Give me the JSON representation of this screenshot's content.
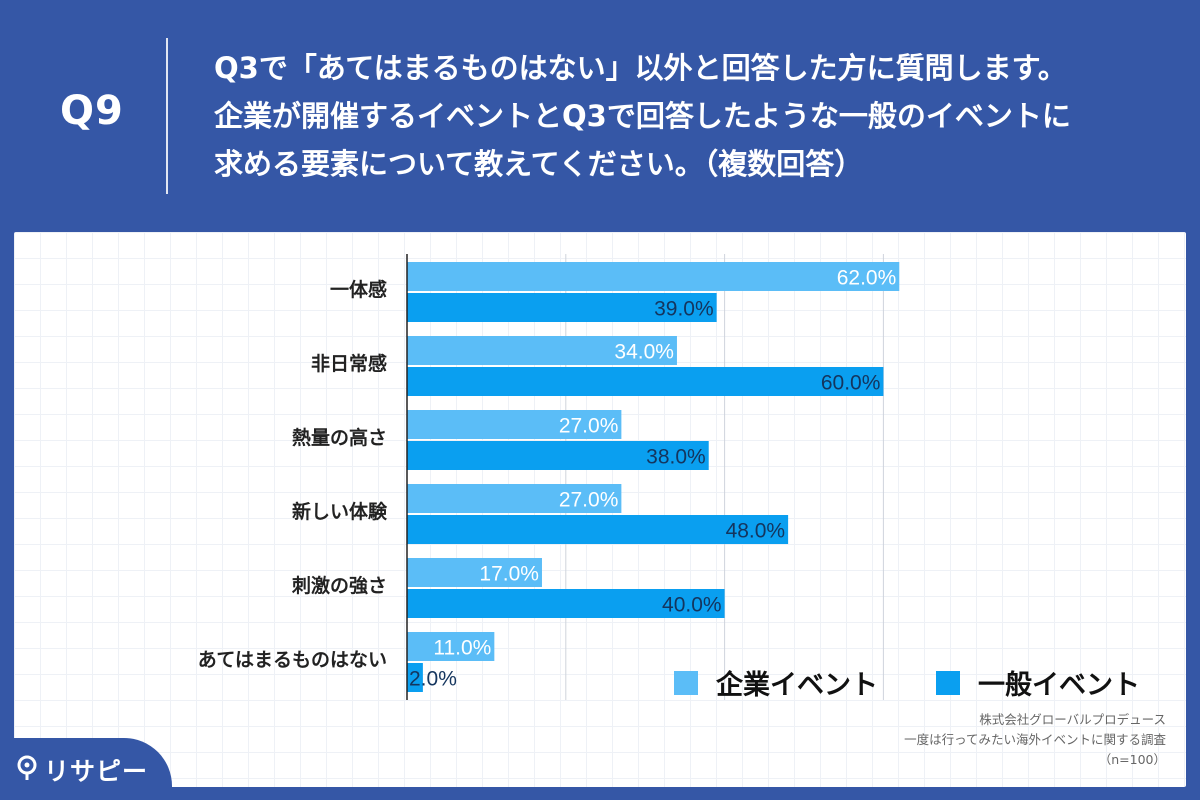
{
  "header": {
    "question_number": "Q9",
    "question_lines": [
      "Q3で「あてはまるものはない」以外と回答した方に質問します。",
      "企業が開催するイベントとQ3で回答したような一般のイベントに",
      "求める要素について教えてください。（複数回答）"
    ]
  },
  "chart_data": {
    "type": "bar",
    "orientation": "horizontal",
    "categories": [
      "一体感",
      "非日常感",
      "熱量の高さ",
      "新しい体験",
      "刺激の強さ",
      "あてはまるものはない"
    ],
    "series": [
      {
        "name": "企業イベント",
        "values": [
          62.0,
          34.0,
          27.0,
          27.0,
          17.0,
          11.0
        ],
        "labels": [
          "62.0%",
          "34.0%",
          "27.0%",
          "27.0%",
          "17.0%",
          "11.0%"
        ]
      },
      {
        "name": "一般イベント",
        "values": [
          39.0,
          60.0,
          38.0,
          48.0,
          40.0,
          2.0
        ],
        "labels": [
          "39.0%",
          "60.0%",
          "38.0%",
          "48.0%",
          "40.0%",
          "2.0%"
        ]
      }
    ],
    "xlim": [
      0,
      70
    ],
    "grid": true,
    "legend_position": "bottom-right",
    "colors": [
      "#5bbdf7",
      "#0a9ff0"
    ]
  },
  "legend": {
    "items": [
      {
        "label": "企業イベント",
        "color": "#5bbdf7"
      },
      {
        "label": "一般イベント",
        "color": "#0a9ff0"
      }
    ]
  },
  "source": {
    "company": "株式会社グローバルプロデュース",
    "survey": "一度は行ってみたい海外イベントに関する調査",
    "sample": "（n=100）"
  },
  "brand": {
    "name": "リサピー"
  }
}
